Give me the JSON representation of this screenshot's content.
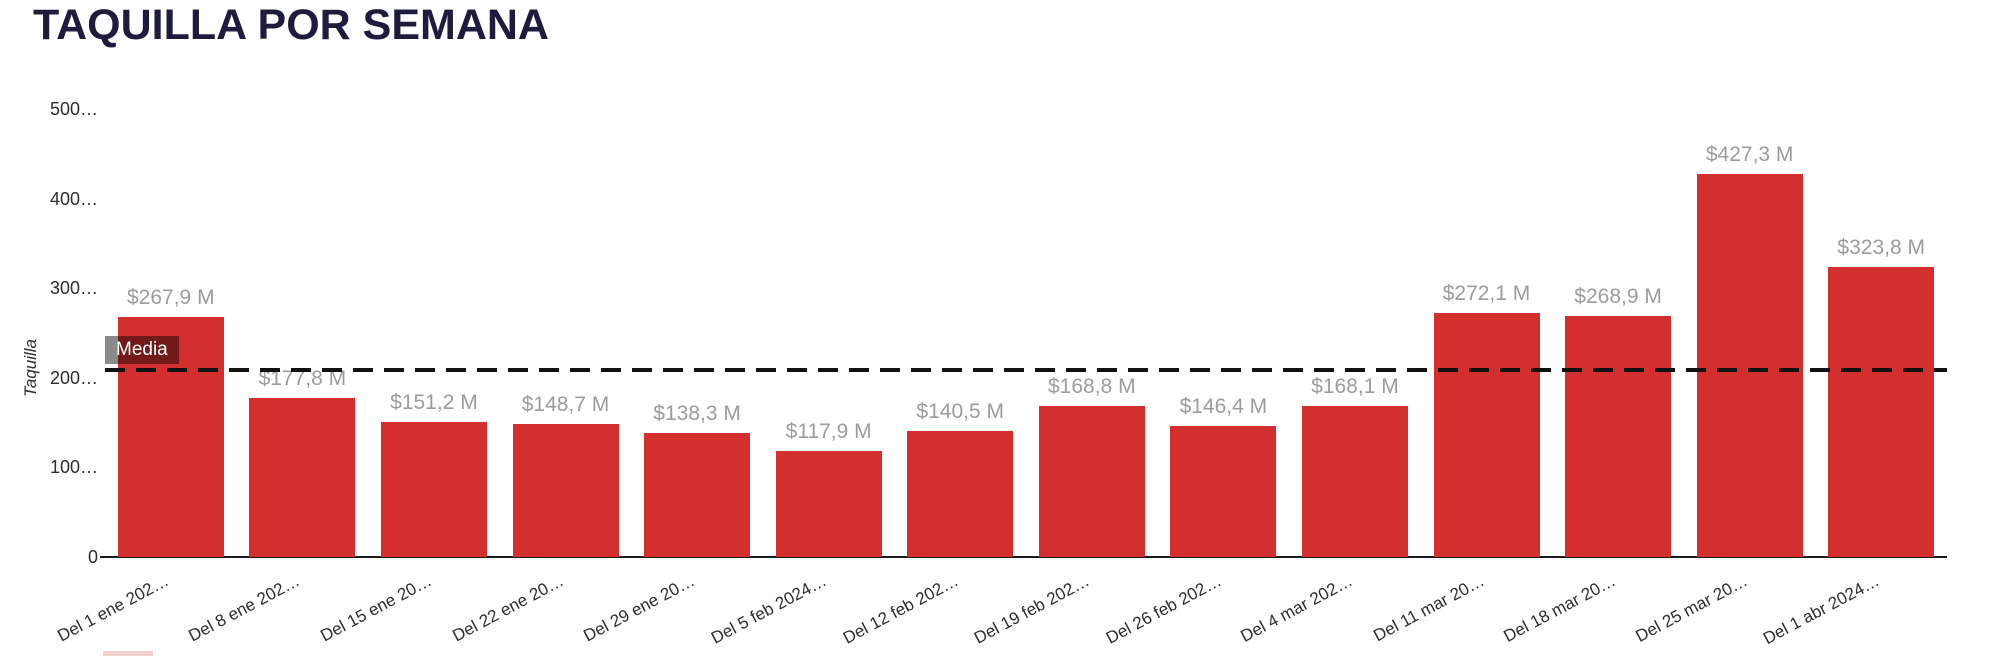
{
  "title": "TAQUILLA POR SEMANA",
  "chart_data": {
    "type": "bar",
    "title": "TAQUILLA POR SEMANA",
    "xlabel": "",
    "ylabel": "Taquilla",
    "ylim": [
      0,
      500
    ],
    "grid": false,
    "legend_position": "bottom-cut-off",
    "categories": [
      "Del 1 ene 202…",
      "Del 8 ene 202…",
      "Del 15 ene 20…",
      "Del 22 ene 20…",
      "Del 29 ene 20…",
      "Del 5 feb 2024…",
      "Del 12 feb 202…",
      "Del 19 feb 202…",
      "Del 26 feb 202…",
      "Del 4 mar 202…",
      "Del 11 mar 20…",
      "Del 18 mar 20…",
      "Del 25 mar 20…",
      "Del 1 abr 2024…"
    ],
    "values": [
      267.9,
      177.8,
      151.2,
      148.7,
      138.3,
      117.9,
      140.5,
      168.8,
      146.4,
      168.1,
      272.1,
      268.9,
      427.3,
      323.8
    ],
    "value_labels": [
      "$267,9 M",
      "$177,8 M",
      "$151,2 M",
      "$148,7 M",
      "$138,3 M",
      "$117,9 M",
      "$140,5 M",
      "$168,8 M",
      "$146,4 M",
      "$168,1 M",
      "$272,1 M",
      "$268,9 M",
      "$427,3 M",
      "$323,8 M"
    ],
    "mean_line": {
      "label": "Media",
      "value": 208.4
    }
  },
  "y_axis": {
    "title": "Taquilla",
    "ticks": [
      {
        "label": "500…",
        "value": 500
      },
      {
        "label": "400…",
        "value": 400
      },
      {
        "label": "300…",
        "value": 300
      },
      {
        "label": "200…",
        "value": 200
      },
      {
        "label": "100…",
        "value": 100
      },
      {
        "label": "0",
        "value": 0
      }
    ]
  },
  "colors": {
    "title": "#1e1c3e",
    "bar": "#d32f2f",
    "value_label": "#9c9c9c",
    "axis_text": "#2d2d2d",
    "mean_line": "#111111",
    "legend_swatch": "#f4d0d0"
  }
}
